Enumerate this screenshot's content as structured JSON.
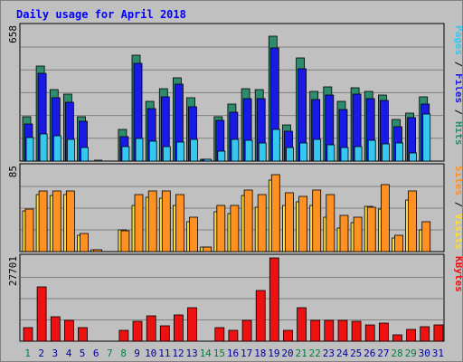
{
  "chart_data": [
    {
      "type": "bar",
      "title": "Daily usage for April 2018",
      "axis_max_label": "658",
      "ylim": [
        0,
        658
      ],
      "grid": true,
      "categories": [
        "1",
        "2",
        "3",
        "4",
        "5",
        "6",
        "7",
        "8",
        "9",
        "10",
        "11",
        "12",
        "13",
        "14",
        "15",
        "16",
        "17",
        "18",
        "19",
        "20",
        "21",
        "22",
        "23",
        "24",
        "25",
        "26",
        "27",
        "28",
        "29",
        "30",
        "31"
      ],
      "weekend_days": [
        "1",
        "7",
        "8",
        "14",
        "15",
        "21",
        "22",
        "28",
        "29"
      ],
      "series": [
        {
          "name": "Hits",
          "color": "#2e8b6e",
          "values": [
            219,
            469,
            351,
            329,
            218,
            0,
            0,
            155,
            518,
            293,
            355,
            411,
            309,
            9,
            220,
            280,
            357,
            353,
            615,
            178,
            508,
            344,
            363,
            292,
            360,
            342,
            323,
            203,
            235,
            316,
            0
          ]
        },
        {
          "name": "Files",
          "color": "#1a1ae6",
          "values": [
            183,
            433,
            309,
            287,
            195,
            0,
            0,
            121,
            480,
            257,
            316,
            376,
            268,
            7,
            198,
            239,
            305,
            305,
            557,
            145,
            455,
            303,
            325,
            255,
            330,
            305,
            296,
            170,
            212,
            279,
            0
          ]
        },
        {
          "name": "Pages",
          "color": "#33c8f0",
          "values": [
            116,
            133,
            124,
            106,
            65,
            6,
            0,
            70,
            109,
            96,
            73,
            92,
            108,
            7,
            51,
            106,
            102,
            91,
            157,
            66,
            89,
            108,
            80,
            68,
            71,
            101,
            85,
            88,
            40,
            230,
            0
          ]
        }
      ],
      "right_label_parts": [
        "Pages",
        "Files",
        "Hits"
      ]
    },
    {
      "type": "bar",
      "axis_max_label": "85",
      "ylim": [
        0,
        85
      ],
      "grid": true,
      "series": [
        {
          "name": "Visits",
          "color": "#ffdd33",
          "values": [
            41,
            58,
            57,
            58,
            16,
            2,
            0,
            22,
            47,
            55,
            54,
            47,
            30,
            5,
            40,
            38,
            57,
            45,
            72,
            47,
            50,
            47,
            35,
            24,
            29,
            46,
            43,
            14,
            52,
            22,
            0
          ]
        },
        {
          "name": "Sites",
          "color": "#ff9022",
          "values": [
            43,
            61,
            61,
            61,
            18,
            2,
            0,
            21,
            58,
            61,
            61,
            58,
            35,
            5,
            47,
            47,
            62,
            58,
            78,
            59,
            56,
            62,
            58,
            37,
            35,
            45,
            68,
            16,
            61,
            30,
            0
          ]
        }
      ],
      "right_label_parts": [
        "Sites",
        "Visits"
      ]
    },
    {
      "type": "bar",
      "axis_max_label": "27701",
      "ylim": [
        0,
        27701
      ],
      "grid": true,
      "series": [
        {
          "name": "KBytes",
          "color": "#ee1111",
          "values": [
            4500,
            18000,
            8200,
            6800,
            4600,
            0,
            0,
            3600,
            6600,
            8400,
            5000,
            8600,
            11200,
            0,
            4400,
            3700,
            7000,
            16900,
            27701,
            3700,
            11200,
            6800,
            6800,
            6800,
            6600,
            5500,
            5900,
            2200,
            3800,
            4800,
            5300
          ]
        }
      ],
      "right_label_parts": [
        "KBytes"
      ]
    }
  ],
  "colors": {
    "background": "#c0c0c0",
    "plot_border": "#000000",
    "grid": "#808080",
    "title": "#0000ff",
    "weekday_label": "#0000a0",
    "weekend_label": "#008040",
    "pages": "#33c8f0",
    "files": "#1a1ae6",
    "hits": "#2e8b6e",
    "sites": "#ff9022",
    "visits": "#ffdd33",
    "kbytes": "#ee1111"
  }
}
